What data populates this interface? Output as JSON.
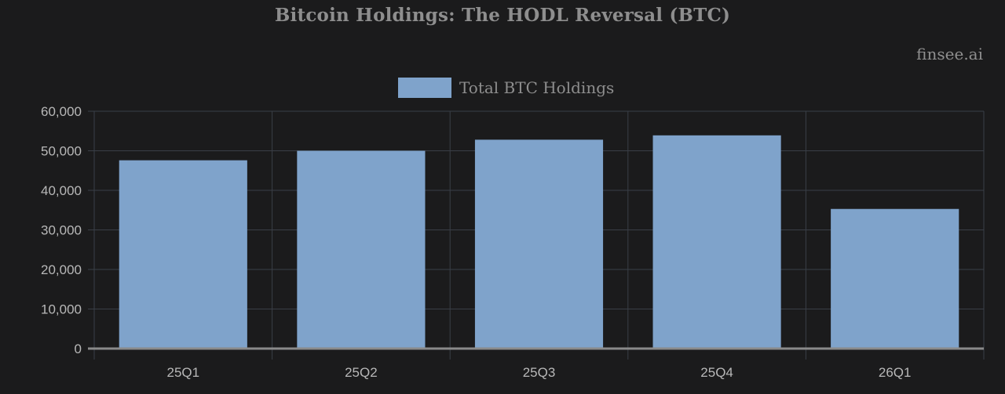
{
  "title": "Bitcoin Holdings: The HODL Reversal (BTC)",
  "watermark": "finsee.ai",
  "colors": {
    "background": "#1b1b1c",
    "bar": "#7fa3cb",
    "grid": "#3a3f47",
    "axis": "#8a8a8a",
    "text": "#b8b8b8"
  },
  "chart_data": {
    "type": "bar",
    "title": "Bitcoin Holdings: The HODL Reversal (BTC)",
    "categories": [
      "25Q1",
      "25Q2",
      "25Q3",
      "25Q4",
      "26Q1"
    ],
    "series": [
      {
        "name": "Total BTC Holdings",
        "values": [
          47600,
          50000,
          52800,
          53900,
          35300
        ]
      }
    ],
    "yticks": [
      "0",
      "10,000",
      "20,000",
      "30,000",
      "40,000",
      "50,000",
      "60,000"
    ],
    "ylim": [
      0,
      60000
    ],
    "grid": true,
    "legend": "top-center"
  }
}
